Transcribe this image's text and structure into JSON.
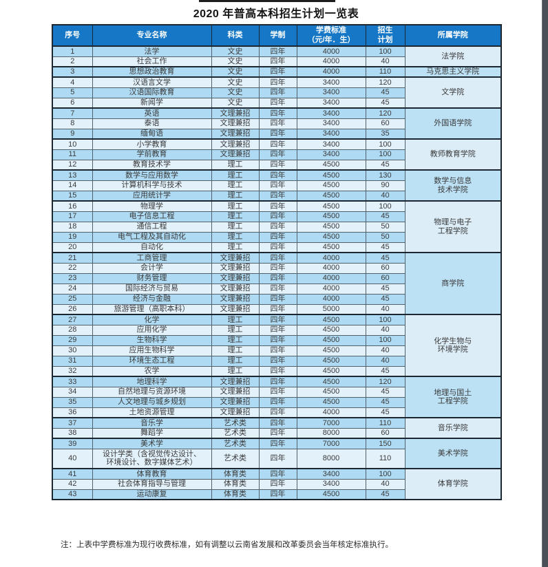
{
  "title": "2020 年普高本科招生计划一览表",
  "note": "注：上表中学费标准为现行收费标准，如有调整以云南省发展和改革委员会当年核定标准执行。",
  "colors": {
    "header_bg": "#1577c5",
    "header_text": "#ffffff",
    "row_medium": "#aedbf3",
    "row_light": "#e3f1fb",
    "college_medium": "#bce0f4",
    "college_light": "#dcedf8",
    "border_thick": "#1b2630",
    "border_thin": "#50606b",
    "number_text": "#8e9aa4",
    "body_text": "#3a3a3a"
  },
  "table": {
    "columns": [
      {
        "key": "no",
        "label": "序号"
      },
      {
        "key": "major",
        "label": "专业名称"
      },
      {
        "key": "category",
        "label": "科类"
      },
      {
        "key": "duration",
        "label": "学制"
      },
      {
        "key": "tuition",
        "label": "学费标准\n（元/年．生）"
      },
      {
        "key": "plan",
        "label": "招生\n计划"
      },
      {
        "key": "college",
        "label": "所属学院"
      }
    ],
    "row_fields": [
      "no",
      "major",
      "category",
      "duration",
      "tuition",
      "plan"
    ],
    "rows": [
      [
        "1",
        "法学",
        "文史",
        "四年",
        "4000",
        "100"
      ],
      [
        "2",
        "社会工作",
        "文史",
        "四年",
        "4000",
        "40"
      ],
      [
        "3",
        "思想政治教育",
        "文史",
        "四年",
        "4000",
        "110"
      ],
      [
        "4",
        "汉语言文学",
        "文史",
        "四年",
        "3400",
        "120"
      ],
      [
        "5",
        "汉语国际教育",
        "文史",
        "四年",
        "3400",
        "45"
      ],
      [
        "6",
        "新闻学",
        "文史",
        "四年",
        "3400",
        "45"
      ],
      [
        "7",
        "英语",
        "文理兼招",
        "四年",
        "3400",
        "120"
      ],
      [
        "8",
        "泰语",
        "文理兼招",
        "四年",
        "3400",
        "60"
      ],
      [
        "9",
        "缅甸语",
        "文理兼招",
        "四年",
        "3400",
        "35"
      ],
      [
        "10",
        "小学教育",
        "文理兼招",
        "四年",
        "3400",
        "100"
      ],
      [
        "11",
        "学前教育",
        "文理兼招",
        "四年",
        "3400",
        "100"
      ],
      [
        "12",
        "教育技术学",
        "理工",
        "四年",
        "4500",
        "45"
      ],
      [
        "13",
        "数学与应用数学",
        "理工",
        "四年",
        "4500",
        "130"
      ],
      [
        "14",
        "计算机科学与技术",
        "理工",
        "四年",
        "4500",
        "90"
      ],
      [
        "15",
        "应用统计学",
        "理工",
        "四年",
        "4500",
        "40"
      ],
      [
        "16",
        "物理学",
        "理工",
        "四年",
        "4500",
        "100"
      ],
      [
        "17",
        "电子信息工程",
        "理工",
        "四年",
        "4500",
        "45"
      ],
      [
        "18",
        "通信工程",
        "理工",
        "四年",
        "4500",
        "50"
      ],
      [
        "19",
        "电气工程及其自动化",
        "理工",
        "四年",
        "4500",
        "50"
      ],
      [
        "20",
        "自动化",
        "理工",
        "四年",
        "4500",
        "45"
      ],
      [
        "21",
        "工商管理",
        "文理兼招",
        "四年",
        "4000",
        "45"
      ],
      [
        "22",
        "会计学",
        "文理兼招",
        "四年",
        "4000",
        "60"
      ],
      [
        "23",
        "财务管理",
        "文理兼招",
        "四年",
        "4000",
        "60"
      ],
      [
        "24",
        "国际经济与贸易",
        "文理兼招",
        "四年",
        "4000",
        "45"
      ],
      [
        "25",
        "经济与金融",
        "文理兼招",
        "四年",
        "4000",
        "45"
      ],
      [
        "26",
        "旅游管理（高职本科）",
        "文理兼招",
        "四年",
        "5000",
        "40"
      ],
      [
        "27",
        "化学",
        "理工",
        "四年",
        "4500",
        "100"
      ],
      [
        "28",
        "应用化学",
        "理工",
        "四年",
        "4500",
        "40"
      ],
      [
        "29",
        "生物科学",
        "理工",
        "四年",
        "4500",
        "100"
      ],
      [
        "30",
        "应用生物科学",
        "理工",
        "四年",
        "4500",
        "40"
      ],
      [
        "31",
        "环境生态工程",
        "理工",
        "四年",
        "4500",
        "40"
      ],
      [
        "32",
        "农学",
        "理工",
        "四年",
        "4500",
        "45"
      ],
      [
        "33",
        "地理科学",
        "文理兼招",
        "四年",
        "4500",
        "120"
      ],
      [
        "34",
        "自然地理与资源环境",
        "文理兼招",
        "四年",
        "4500",
        "45"
      ],
      [
        "35",
        "人文地理与城乡规划",
        "文理兼招",
        "四年",
        "4500",
        "45"
      ],
      [
        "36",
        "土地资源管理",
        "文理兼招",
        "四年",
        "4000",
        "45"
      ],
      [
        "37",
        "音乐学",
        "艺术类",
        "四年",
        "7000",
        "110"
      ],
      [
        "38",
        "舞蹈学",
        "艺术类",
        "四年",
        "8000",
        "60"
      ],
      [
        "39",
        "美术学",
        "艺术类",
        "四年",
        "7000",
        "150"
      ],
      [
        "40",
        "设计学类（含视觉传达设计、\n环境设计、数字媒体艺术）",
        "艺术类",
        "四年",
        "8000",
        "110"
      ],
      [
        "41",
        "体育教育",
        "体育类",
        "四年",
        "3400",
        "100"
      ],
      [
        "42",
        "社会体育指导与管理",
        "体育类",
        "四年",
        "3400",
        "40"
      ],
      [
        "43",
        "运动康复",
        "体育类",
        "四年",
        "4500",
        "45"
      ]
    ],
    "colleges": [
      {
        "name": "法学院",
        "rowspan": 2
      },
      {
        "name": "马克思主义学院",
        "rowspan": 1
      },
      {
        "name": "文学院",
        "rowspan": 3
      },
      {
        "name": "外国语学院",
        "rowspan": 3
      },
      {
        "name": "教师教育学院",
        "rowspan": 3
      },
      {
        "name": "数学与信息\n技术学院",
        "rowspan": 3
      },
      {
        "name": "物理与电子\n工程学院",
        "rowspan": 5
      },
      {
        "name": "商学院",
        "rowspan": 6
      },
      {
        "name": "化学生物与\n环境学院",
        "rowspan": 6
      },
      {
        "name": "地理与国土\n工程学院",
        "rowspan": 4
      },
      {
        "name": "音乐学院",
        "rowspan": 2
      },
      {
        "name": "美术学院",
        "rowspan": 2
      },
      {
        "name": "体育学院",
        "rowspan": 3
      }
    ]
  }
}
